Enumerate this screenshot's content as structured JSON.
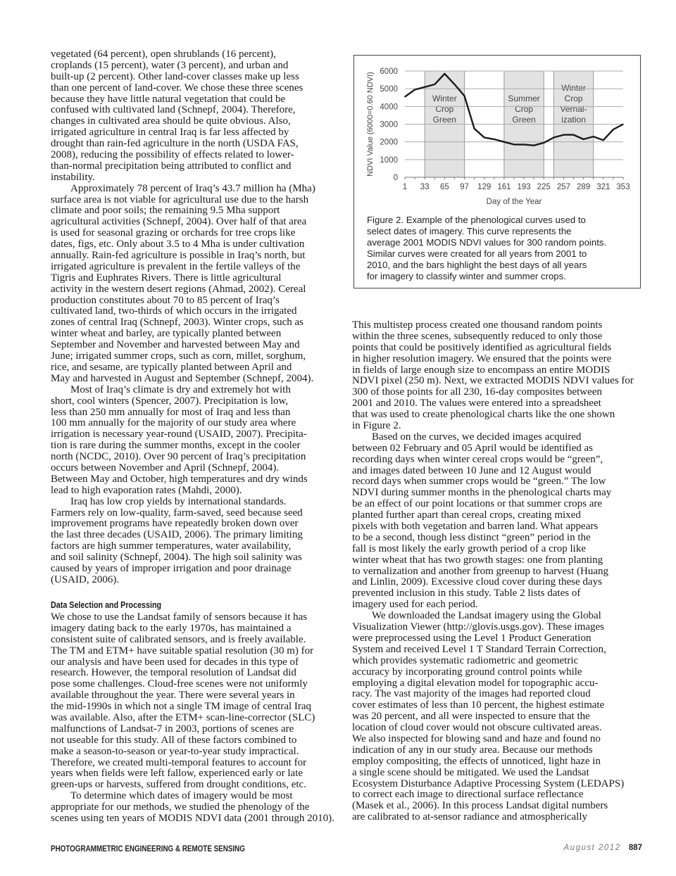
{
  "left_column": [
    {
      "indent": false,
      "lines": [
        "vegetated (64 percent), open shrublands (16 percent),",
        "croplands (15 percent), water (3 percent), and urban and",
        "built-up (2 percent). Other land-cover classes make up less",
        "than one percent of land-cover. We chose these three scenes",
        "because they have little natural vegetation that could be",
        "confused with cultivated land (Schnepf, 2004). Therefore,",
        "changes in cultivated area should be quite obvious. Also,",
        "irrigated agriculture in central Iraq is far less affected by",
        "drought than rain-fed agriculture in the north (USDA FAS,",
        "2008), reducing the possibility of effects related to lower-",
        "than-normal precipitation being attributed to conflict and",
        "instability."
      ]
    },
    {
      "indent": true,
      "lines": [
        "Approximately 78 percent of Iraq’s 43.7 million ha (Mha)",
        "surface area is not viable for agricultural use due to the harsh",
        "climate and poor soils; the remaining 9.5 Mha support",
        "agricultural activities (Schnepf, 2004). Over half of that area",
        "is used for seasonal grazing or orchards for tree crops like",
        "dates, figs, etc. Only about 3.5 to 4 Mha is under cultivation",
        "annually. Rain-fed agriculture is possible in Iraq’s north, but",
        "irrigated agriculture is prevalent in the fertile valleys of the",
        "Tigris and Euphrates Rivers. There is little agricultural",
        "activity in the western desert regions (Ahmad, 2002). Cereal",
        "production constitutes about 70 to 85 percent of Iraq’s",
        "cultivated land, two-thirds of which occurs in the irrigated",
        "zones of central Iraq (Schnepf, 2003). Winter crops, such as",
        "winter wheat and barley, are typically planted between",
        "September and November and harvested between May and",
        "June; irrigated summer crops, such as corn, millet, sorghum,",
        "rice, and sesame, are typically planted between April and",
        "May and harvested in August and September (Schnepf, 2004)."
      ]
    },
    {
      "indent": true,
      "lines": [
        "Most of Iraq’s climate is dry and extremely hot with",
        "short, cool winters (Spencer, 2007). Precipitation is low,",
        "less than 250 mm annually for most of Iraq and less than",
        "100 mm annually for the majority of our study area where",
        "irrigation is necessary year-round (USAID, 2007). Precipita-",
        "tion is rare during the summer months, except in the cooler",
        "north (NCDC, 2010). Over 90 percent of Iraq’s precipitation",
        "occurs between November and April (Schnepf, 2004).",
        "Between May and October, high temperatures and dry winds",
        "lead to high evaporation rates (Mahdi, 2000)."
      ]
    },
    {
      "indent": true,
      "lines": [
        "Iraq has low crop yields by international standards.",
        "Farmers rely on low-quality, farm-saved, seed because seed",
        "improvement programs have repeatedly broken down over",
        "the last three decades (USAID, 2006). The primary limiting",
        "factors are high summer temperatures, water availability,",
        "and soil salinity (Schnepf, 2004). The high soil salinity was",
        "caused by years of improper irrigation and poor drainage",
        "(USAID, 2006)."
      ]
    }
  ],
  "section_heading": "Data Selection and Processing",
  "left_column_2": [
    {
      "indent": false,
      "lines": [
        "We chose to use the Landsat family of sensors because it has",
        "imagery dating back to the early 1970s, has maintained a",
        "consistent suite of calibrated sensors, and is freely available.",
        "The TM and ETM+ have suitable spatial resolution (30 m) for",
        "our analysis and have been used for decades in this type of",
        "research. However, the temporal resolution of Landsat did",
        "pose some challenges. Cloud-free scenes were not uniformly",
        "available throughout the year. There were several years in",
        "the mid-1990s in which not a single TM image of central Iraq",
        "was available. Also, after the ETM+ scan-line-corrector (SLC)",
        "malfunctions of Landsat-7 in 2003, portions of scenes are",
        "not useable for this study. All of these factors combined to",
        "make a season-to-season or year-to-year study impractical.",
        "Therefore, we created multi-temporal features to account for",
        "years when fields were left fallow, experienced early or late",
        "green-ups or harvests, suffered from drought conditions, etc."
      ]
    },
    {
      "indent": true,
      "lines": [
        "To determine which dates of imagery would be most",
        "appropriate for our methods, we studied the phenology of the",
        "scenes using ten years of MODIS NDVI data (2001 through 2010)."
      ]
    }
  ],
  "right_column": [
    {
      "indent": false,
      "lines": [
        "This multistep process created one thousand random points",
        "within the three scenes, subsequently reduced to only those",
        "points that could be positively identified as agricultural fields",
        "in higher resolution imagery. We ensured that the points were",
        "in fields of large enough size to encompass an entire MODIS",
        "NDVI pixel (250 m). Next, we extracted MODIS NDVI values for",
        "300 of those points for all 230, 16-day composites between",
        "2001 and 2010. The values were entered into a spreadsheet",
        "that was used to create phenological charts like the one shown",
        "in Figure 2."
      ]
    },
    {
      "indent": true,
      "lines": [
        "Based on the curves, we decided images acquired",
        "between 02 February and 05 April would be identified as",
        "recording days when winter cereal crops would be “green”,",
        "and images dated between 10 June and 12 August would",
        "record days when summer crops would be “green.” The low",
        "NDVI during summer months in the phenological charts may",
        "be an effect of our point locations or that summer crops are",
        "planted further apart than cereal crops, creating mixed",
        "pixels with both vegetation and barren land. What appears",
        "to be a second, though less distinct “green” period in the",
        "fall is most likely the early growth period of a crop like",
        "winter wheat that has two growth stages: one from planting",
        "to vernalization and another from greenup to harvest (Huang",
        "and Linlin, 2009). Excessive cloud cover during these days",
        "prevented inclusion in this study. Table 2 lists dates of",
        "imagery used for each period."
      ]
    },
    {
      "indent": true,
      "lines": [
        "We downloaded the Landsat imagery using the Global",
        "Visualization Viewer (http://glovis.usgs.gov). These images",
        "were preprocessed using the Level 1 Product Generation",
        "System and received Level 1 T Standard Terrain Correction,",
        "which provides systematic radiometric and geometric",
        "accuracy by incorporating ground control points while",
        "employing a digital elevation model for topographic accu-",
        "racy. The vast majority of the images had reported cloud",
        "cover estimates of less than 10 percent, the highest estimate",
        "was 20 percent, and all were inspected to ensure that the",
        "location of cloud cover would not obscure cultivated areas.",
        "We also inspected for blowing sand and haze and found no",
        "indication of any in our study area. Because our methods",
        "employ compositing, the effects of unnoticed, light haze in",
        "a single scene should be mitigated. We used the Landsat",
        "Ecosystem Disturbance Adaptive Processing System (LEDAPS)",
        "to correct each image to directional surface reflectance",
        "(Masek et al., 2006). In this process Landsat digital numbers",
        "are calibrated to at-sensor radiance and atmospherically"
      ]
    }
  ],
  "figure": {
    "caption_lines": [
      "Figure 2. Example of the phenological curves used to",
      "select dates of imagery. This curve represents the",
      "average 2001 MODIS NDVI values for 300 random points.",
      "Similar curves were created for all years from 2001 to",
      "2010, and the bars highlight the best days of all years",
      "for imagery to classify winter and summer crops."
    ]
  },
  "chart_data": {
    "type": "line",
    "title": "",
    "xlabel": "Day of the Year",
    "ylabel": "NDVI Value (6000=0.60 NDVI)",
    "xlim": [
      1,
      353
    ],
    "ylim": [
      0,
      6000
    ],
    "x_ticks": [
      1,
      33,
      65,
      97,
      129,
      161,
      193,
      225,
      257,
      289,
      321,
      353
    ],
    "y_ticks": [
      0,
      1000,
      2000,
      3000,
      4000,
      5000,
      6000
    ],
    "grid": "horizontal",
    "x": [
      1,
      17,
      33,
      49,
      65,
      81,
      97,
      113,
      129,
      145,
      161,
      177,
      193,
      209,
      225,
      241,
      257,
      273,
      289,
      305,
      321,
      337,
      353
    ],
    "values": [
      4550,
      4950,
      5100,
      5250,
      5850,
      5250,
      4600,
      2750,
      2250,
      2150,
      2000,
      1850,
      1850,
      1800,
      1950,
      2250,
      2400,
      2400,
      2150,
      2300,
      2100,
      2700,
      3000
    ],
    "line_color": "#1a1a1a",
    "bands": [
      {
        "start": 33,
        "end": 97,
        "label_lines": [
          "Winter",
          "Crop",
          "Green"
        ]
      },
      {
        "start": 161,
        "end": 225,
        "label_lines": [
          "Summer",
          "Crop",
          "Green"
        ]
      },
      {
        "start": 241,
        "end": 305,
        "label_lines": [
          "Winter",
          "Crop",
          "Vernal-",
          "ization"
        ]
      }
    ],
    "band_color": "#e2e2e2"
  },
  "footer": {
    "journal": "PHOTOGRAMMETRIC ENGINEERING & REMOTE SENSING",
    "date": "August 2012",
    "page": "887"
  }
}
